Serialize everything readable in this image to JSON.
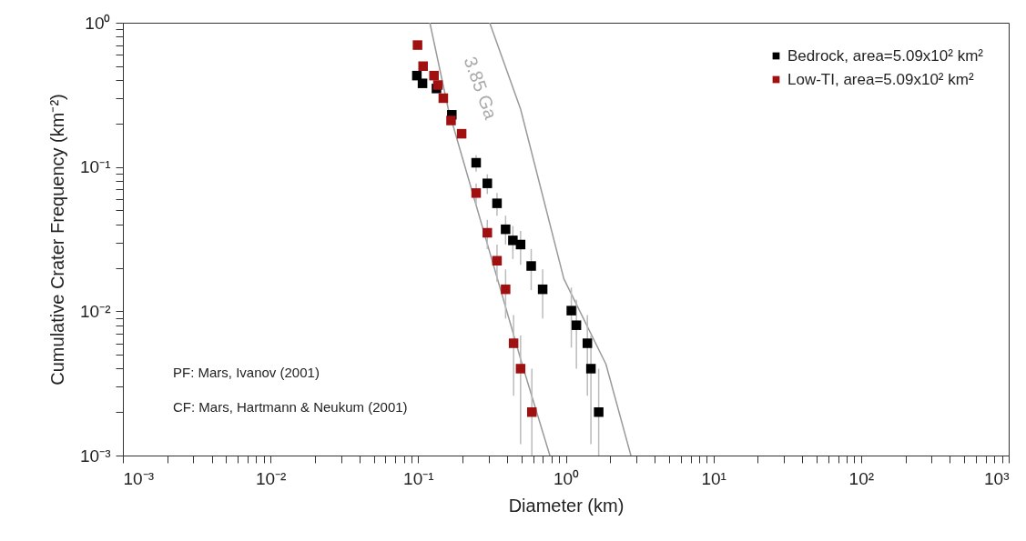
{
  "chart_data": {
    "type": "scatter",
    "xlabel": "Diameter (km)",
    "ylabel": "Cumulative Crater Frequency (km⁻²)",
    "log": "xy",
    "legend": "top right",
    "xlim": [
      0.001,
      1000
    ],
    "ylim": [
      0.001,
      1
    ],
    "xticks": [
      {
        "value": 0.001,
        "label": "10⁻³"
      },
      {
        "value": 0.002,
        "label": null
      },
      {
        "value": 0.003,
        "label": null
      },
      {
        "value": 0.004,
        "label": null
      },
      {
        "value": 0.005,
        "label": null
      },
      {
        "value": 0.006,
        "label": null
      },
      {
        "value": 0.007,
        "label": null
      },
      {
        "value": 0.008,
        "label": null
      },
      {
        "value": 0.009,
        "label": null
      },
      {
        "value": 0.01,
        "label": "10⁻²"
      },
      {
        "value": 0.02,
        "label": null
      },
      {
        "value": 0.03,
        "label": null
      },
      {
        "value": 0.04,
        "label": null
      },
      {
        "value": 0.05,
        "label": null
      },
      {
        "value": 0.06,
        "label": null
      },
      {
        "value": 0.07,
        "label": null
      },
      {
        "value": 0.08,
        "label": null
      },
      {
        "value": 0.09,
        "label": null
      },
      {
        "value": 0.1,
        "label": "10⁻¹"
      },
      {
        "value": 0.2,
        "label": null
      },
      {
        "value": 0.3,
        "label": null
      },
      {
        "value": 0.4,
        "label": null
      },
      {
        "value": 0.5,
        "label": null
      },
      {
        "value": 0.6,
        "label": null
      },
      {
        "value": 0.7,
        "label": null
      },
      {
        "value": 0.8,
        "label": null
      },
      {
        "value": 0.9,
        "label": null
      },
      {
        "value": 1,
        "label": "10⁰"
      },
      {
        "value": 2,
        "label": null
      },
      {
        "value": 3,
        "label": null
      },
      {
        "value": 4,
        "label": null
      },
      {
        "value": 5,
        "label": null
      },
      {
        "value": 6,
        "label": null
      },
      {
        "value": 7,
        "label": null
      },
      {
        "value": 8,
        "label": null
      },
      {
        "value": 9,
        "label": null
      },
      {
        "value": 10,
        "label": "10¹"
      },
      {
        "value": 20,
        "label": null
      },
      {
        "value": 30,
        "label": null
      },
      {
        "value": 40,
        "label": null
      },
      {
        "value": 50,
        "label": null
      },
      {
        "value": 60,
        "label": null
      },
      {
        "value": 70,
        "label": null
      },
      {
        "value": 80,
        "label": null
      },
      {
        "value": 90,
        "label": null
      },
      {
        "value": 100,
        "label": "10²"
      },
      {
        "value": 200,
        "label": null
      },
      {
        "value": 300,
        "label": null
      },
      {
        "value": 400,
        "label": null
      },
      {
        "value": 500,
        "label": null
      },
      {
        "value": 600,
        "label": null
      },
      {
        "value": 700,
        "label": null
      },
      {
        "value": 800,
        "label": null
      },
      {
        "value": 900,
        "label": null
      },
      {
        "value": 1000,
        "label": "10³"
      }
    ],
    "yticks": [
      {
        "value": 0.001,
        "label": "10⁻³"
      },
      {
        "value": 0.002,
        "label": null
      },
      {
        "value": 0.003,
        "label": null
      },
      {
        "value": 0.004,
        "label": null
      },
      {
        "value": 0.005,
        "label": null
      },
      {
        "value": 0.006,
        "label": null
      },
      {
        "value": 0.007,
        "label": null
      },
      {
        "value": 0.008,
        "label": null
      },
      {
        "value": 0.009,
        "label": null
      },
      {
        "value": 0.01,
        "label": "10⁻²"
      },
      {
        "value": 0.02,
        "label": null
      },
      {
        "value": 0.03,
        "label": null
      },
      {
        "value": 0.04,
        "label": null
      },
      {
        "value": 0.05,
        "label": null
      },
      {
        "value": 0.06,
        "label": null
      },
      {
        "value": 0.07,
        "label": null
      },
      {
        "value": 0.08,
        "label": null
      },
      {
        "value": 0.09,
        "label": null
      },
      {
        "value": 0.1,
        "label": "10⁻¹"
      },
      {
        "value": 0.2,
        "label": null
      },
      {
        "value": 0.3,
        "label": null
      },
      {
        "value": 0.4,
        "label": null
      },
      {
        "value": 0.5,
        "label": null
      },
      {
        "value": 0.6,
        "label": null
      },
      {
        "value": 0.7,
        "label": null
      },
      {
        "value": 0.8,
        "label": null
      },
      {
        "value": 0.9,
        "label": null
      },
      {
        "value": 1,
        "label": "10⁰"
      }
    ],
    "series": [
      {
        "name": "Bedrock, area=5.09x10² km²",
        "color": "#000000",
        "marker": "square",
        "x": [
          0.098,
          0.107,
          0.133,
          0.169,
          0.247,
          0.294,
          0.342,
          0.391,
          0.438,
          0.494,
          0.583,
          0.697,
          1.09,
          1.18,
          1.4,
          1.48,
          1.67
        ],
        "values": [
          0.43,
          0.38,
          0.35,
          0.23,
          0.107,
          0.077,
          0.056,
          0.037,
          0.031,
          0.029,
          0.0206,
          0.0142,
          0.0101,
          0.008,
          0.006,
          0.004,
          0.002
        ],
        "errors": [
          null,
          null,
          null,
          null,
          [
            0.093,
            0.121
          ],
          [
            0.065,
            0.089
          ],
          [
            0.046,
            0.066
          ],
          [
            0.029,
            0.046
          ],
          [
            0.023,
            0.039
          ],
          [
            0.021,
            0.036
          ],
          [
            0.014,
            0.027
          ],
          [
            0.0089,
            0.0195
          ],
          [
            0.0056,
            0.0146
          ],
          [
            0.004,
            0.012
          ],
          [
            0.0026,
            0.0094
          ],
          [
            0.0012,
            0.0068
          ],
          [
            0.001,
            0.004
          ]
        ]
      },
      {
        "name": "Low-TI, area=5.09x10² km²",
        "color": "#a01010",
        "marker": "square",
        "x": [
          0.099,
          0.108,
          0.128,
          0.136,
          0.148,
          0.167,
          0.197,
          0.247,
          0.294,
          0.342,
          0.391,
          0.443,
          0.494,
          0.589
        ],
        "values": [
          0.7,
          0.5,
          0.43,
          0.37,
          0.3,
          0.21,
          0.17,
          0.066,
          0.035,
          0.0224,
          0.0142,
          0.006,
          0.004,
          0.002
        ],
        "errors": [
          null,
          null,
          null,
          null,
          null,
          null,
          null,
          [
            0.055,
            0.077
          ],
          [
            0.027,
            0.043
          ],
          [
            0.016,
            0.029
          ],
          [
            0.0089,
            0.0195
          ],
          [
            0.0026,
            0.0094
          ],
          [
            0.0012,
            0.0068
          ],
          [
            0.001,
            0.004
          ]
        ]
      },
      {
        "type": "line",
        "color": "#9a9a9a",
        "x": [
          0.12,
          0.16,
          0.506,
          0.78
        ],
        "values": [
          1,
          0.252,
          0.0043,
          0.001
        ]
      },
      {
        "type": "line",
        "color": "#9a9a9a",
        "x": [
          0.305,
          0.494,
          0.97,
          1.87,
          2.76
        ],
        "values": [
          1,
          0.252,
          0.0168,
          0.0043,
          0.001
        ]
      }
    ],
    "annotations": [
      "3.85 Ga",
      "PF: Mars, Ivanov (2001)",
      "CF: Mars, Hartmann & Neukum (2001)"
    ]
  }
}
